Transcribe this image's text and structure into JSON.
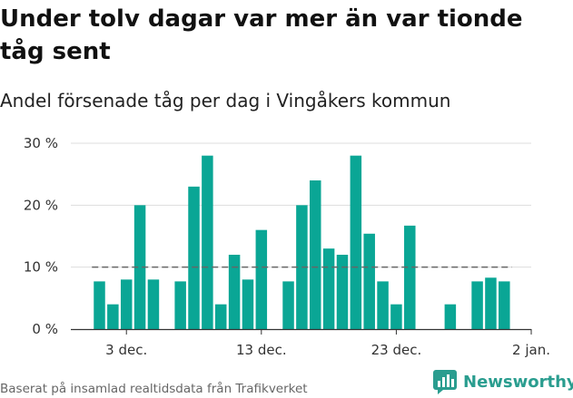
{
  "header": {
    "title": "Under tolv dagar var mer än var tionde tåg sent",
    "subtitle": "Andel försenade tåg per dag i Vingåkers kommun"
  },
  "footer": {
    "source": "Baserat på insamlad realtidsdata från Trafikverket",
    "brand": "Newsworthy"
  },
  "colors": {
    "bar": "#0aa695",
    "reference_line": "#666666",
    "grid": "#dddddd",
    "brand": "#2a9d8f"
  },
  "chart_data": {
    "type": "bar",
    "x_unit": "day",
    "x": [
      "2021-12-01",
      "2021-12-02",
      "2021-12-03",
      "2021-12-04",
      "2021-12-05",
      "2021-12-06",
      "2021-12-07",
      "2021-12-08",
      "2021-12-09",
      "2021-12-10",
      "2021-12-11",
      "2021-12-12",
      "2021-12-13",
      "2021-12-14",
      "2021-12-15",
      "2021-12-16",
      "2021-12-17",
      "2021-12-18",
      "2021-12-19",
      "2021-12-20",
      "2021-12-21",
      "2021-12-22",
      "2021-12-23",
      "2021-12-24",
      "2021-12-25",
      "2021-12-26",
      "2021-12-27",
      "2021-12-28",
      "2021-12-29",
      "2021-12-30",
      "2021-12-31",
      "2022-01-01",
      "2022-01-02"
    ],
    "values": [
      7.7,
      4,
      8,
      20,
      8,
      null,
      7.7,
      23,
      28,
      4,
      12,
      8,
      16,
      null,
      7.7,
      20,
      24,
      13,
      12,
      28,
      15.4,
      7.7,
      4,
      16.7,
      null,
      null,
      4,
      null,
      7.7,
      8.3,
      7.7,
      null,
      null
    ],
    "reference_line": {
      "value": 10,
      "style": "dashed"
    },
    "x_ticks": [
      {
        "date": "2021-12-03",
        "label": "3 dec."
      },
      {
        "date": "2021-12-13",
        "label": "13 dec."
      },
      {
        "date": "2021-12-23",
        "label": "23 dec."
      },
      {
        "date": "2022-01-02",
        "label": "2 jan."
      }
    ],
    "y_ticks": [
      {
        "value": 0,
        "label": "0 %"
      },
      {
        "value": 10,
        "label": "10 %"
      },
      {
        "value": 20,
        "label": "20 %"
      },
      {
        "value": 30,
        "label": "30 %"
      }
    ],
    "ylim": [
      0,
      30
    ],
    "grid": true
  }
}
